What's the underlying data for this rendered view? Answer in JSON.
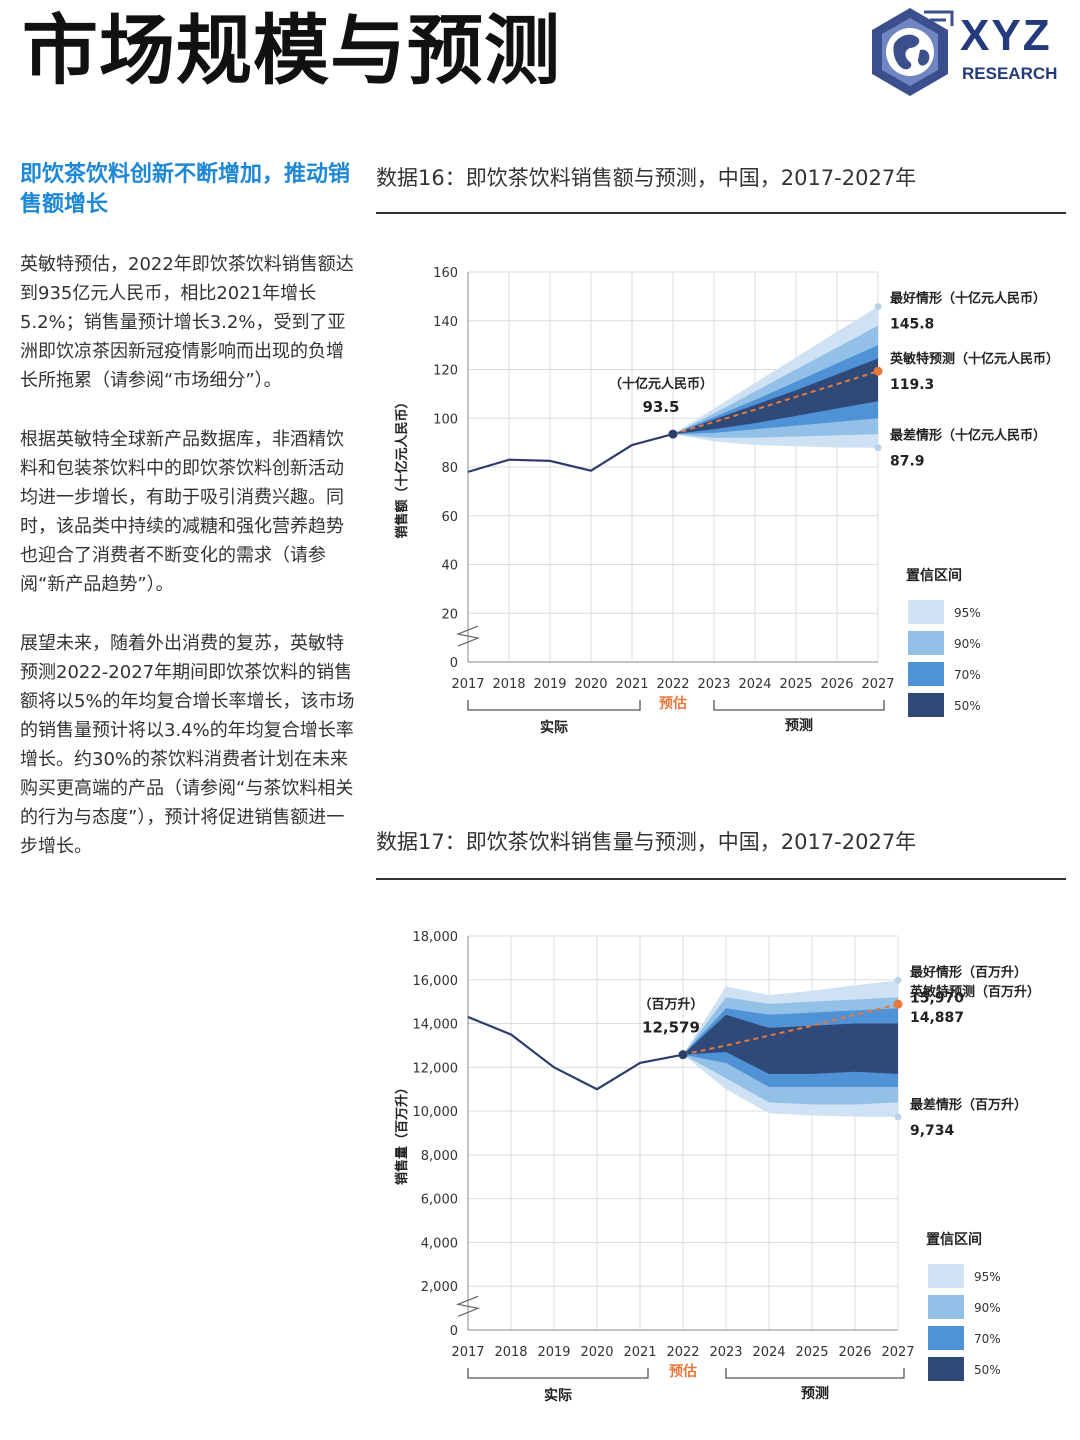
{
  "page": {
    "title": "市场规模与预测",
    "logo": {
      "main": "XYZ",
      "sub": "RESEARCH"
    }
  },
  "sidebar": {
    "heading": "即饮茶饮料创新不断增加，推动销售额增长",
    "paragraphs": [
      "英敏特预估，2022年即饮茶饮料销售额达到935亿元人民币，相比2021年增长5.2%；销售量预计增长3.2%，受到了亚洲即饮凉茶因新冠疫情影响而出现的负增长所拖累（请参阅“市场细分”）。",
      "根据英敏特全球新产品数据库，非酒精饮料和包装茶饮料中的即饮茶饮料创新活动均进一步增长，有助于吸引消费兴趣。同时，该品类中持续的减糖和强化营养趋势也迎合了消费者不断变化的需求（请参阅“新产品趋势”）。",
      "展望未来，随着外出消费的复苏，英敏特预测2022-2027年期间即饮茶饮料的销售额将以5%的年均复合增长率增长，该市场的销售量预计将以3.4%的年均复合增长率增长。约30%的茶饮料消费者计划在未来购买更高端的产品（请参阅“与茶饮料相关的行为与态度”），预计将促进销售额进一步增长。"
    ]
  },
  "colors": {
    "ci95": "#cfe2f3",
    "ci90": "#93c0e6",
    "ci70": "#4f93d6",
    "ci50": "#2f4a78",
    "actual_line": "#2c3e6b",
    "forecast_line": "#e8773a",
    "estimate": "#e8773a"
  },
  "chart_data": [
    {
      "type": "line",
      "title": "数据16：即饮茶饮料销售额与预测，中国，2017-2027年",
      "ylabel": "销售额（十亿元人民币）",
      "ylim": [
        0,
        160
      ],
      "yticks": [
        0,
        20,
        40,
        60,
        80,
        100,
        120,
        140,
        160
      ],
      "ytick_labels": [
        "0",
        "20",
        "40",
        "60",
        "80",
        "100",
        "120",
        "140",
        "160"
      ],
      "x": [
        "2017",
        "2018",
        "2019",
        "2020",
        "2021",
        "2022",
        "2023",
        "2024",
        "2025",
        "2026",
        "2027"
      ],
      "actual": [
        78,
        83,
        82.5,
        78.5,
        89,
        93.5
      ],
      "forecast": [
        93.5,
        98.5,
        103.5,
        108.8,
        114,
        119.3
      ],
      "bands": {
        "p95": {
          "upper": [
            93.5,
            104,
            114.5,
            125,
            135.5,
            145.8
          ],
          "lower": [
            93.5,
            90.5,
            89,
            88.5,
            88,
            87.9
          ]
        },
        "p90": {
          "upper": [
            93.5,
            102,
            111,
            120,
            129,
            138
          ],
          "lower": [
            93.5,
            92,
            92,
            92.5,
            93,
            93.5
          ]
        },
        "p70": {
          "upper": [
            93.5,
            100.5,
            107.5,
            115,
            122.5,
            130
          ],
          "lower": [
            93.5,
            94,
            95.5,
            97,
            98.5,
            100
          ]
        },
        "p50": {
          "upper": [
            93.5,
            99.5,
            105.5,
            111.5,
            118,
            124.5
          ],
          "lower": [
            93.5,
            95.5,
            98,
            101,
            104,
            107
          ]
        }
      },
      "point_label": {
        "unit": "（十亿元人民币）",
        "value": "93.5"
      },
      "scenarios": [
        {
          "label": "最好情形（十亿元人民币）",
          "value": "145.8"
        },
        {
          "label": "英敏特预测（十亿元人民币）",
          "value": "119.3"
        },
        {
          "label": "最差情形（十亿元人民币）",
          "value": "87.9"
        }
      ],
      "period_labels": {
        "actual": "实际",
        "estimate": "预估",
        "forecast": "预测"
      },
      "legend": {
        "title": "置信区间",
        "items": [
          "95%",
          "90%",
          "70%",
          "50%"
        ],
        "position": "right"
      },
      "grid": true
    },
    {
      "type": "line",
      "title": "数据17：即饮茶饮料销售量与预测，中国，2017-2027年",
      "ylabel": "销售量（百万升）",
      "ylim": [
        0,
        18000
      ],
      "yticks": [
        0,
        2000,
        4000,
        6000,
        8000,
        10000,
        12000,
        14000,
        16000,
        18000
      ],
      "ytick_labels": [
        "0",
        "2,000",
        "4,000",
        "6,000",
        "8,000",
        "10,000",
        "12,000",
        "14,000",
        "16,000",
        "18,000"
      ],
      "x": [
        "2017",
        "2018",
        "2019",
        "2020",
        "2021",
        "2022",
        "2023",
        "2024",
        "2025",
        "2026",
        "2027"
      ],
      "actual": [
        14300,
        13500,
        12000,
        11000,
        12200,
        12579
      ],
      "forecast": [
        12579,
        13000,
        13450,
        13900,
        14400,
        14887
      ],
      "bands": {
        "p95": {
          "upper": [
            12579,
            15700,
            15300,
            15500,
            15750,
            15970
          ],
          "lower": [
            12579,
            11000,
            9900,
            9800,
            9750,
            9734
          ]
        },
        "p90": {
          "upper": [
            12579,
            15200,
            14900,
            15000,
            15100,
            15200
          ],
          "lower": [
            12579,
            11500,
            10400,
            10300,
            10300,
            10400
          ]
        },
        "p70": {
          "upper": [
            12579,
            14700,
            14400,
            14500,
            14600,
            14700
          ],
          "lower": [
            12579,
            12200,
            11100,
            11100,
            11100,
            11100
          ]
        },
        "p50": {
          "upper": [
            12579,
            14400,
            13800,
            13900,
            14000,
            14000
          ],
          "lower": [
            12579,
            12700,
            11700,
            11700,
            11800,
            11700
          ]
        }
      },
      "point_label": {
        "unit": "（百万升）",
        "value": "12,579"
      },
      "scenarios": [
        {
          "label": "最好情形（百万升）",
          "value": "15,970"
        },
        {
          "label": "英敏特预测（百万升）",
          "value": "14,887"
        },
        {
          "label": "最差情形（百万升）",
          "value": "9,734"
        }
      ],
      "period_labels": {
        "actual": "实际",
        "estimate": "预估",
        "forecast": "预测"
      },
      "legend": {
        "title": "置信区间",
        "items": [
          "95%",
          "90%",
          "70%",
          "50%"
        ],
        "position": "right"
      },
      "grid": true
    }
  ]
}
